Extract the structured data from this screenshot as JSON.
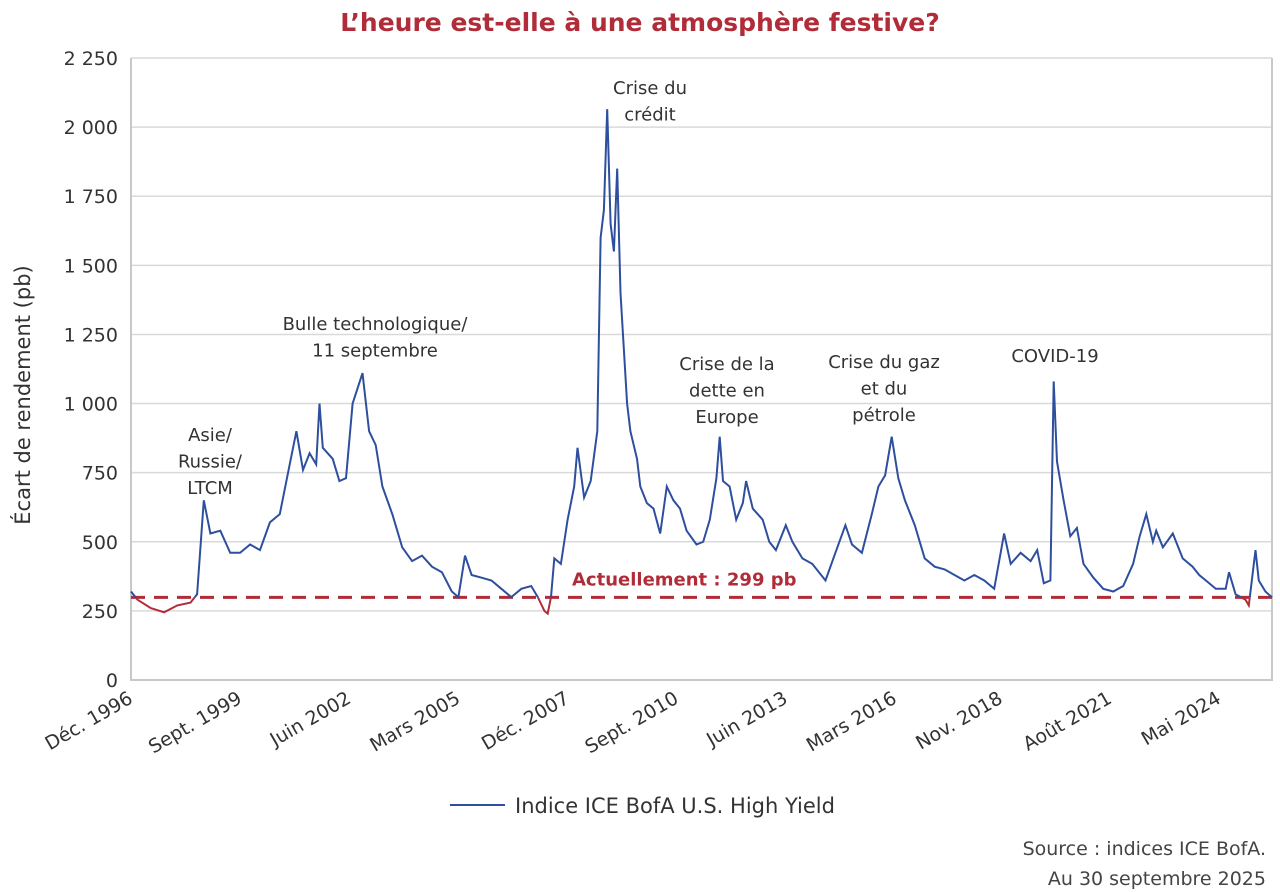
{
  "colors": {
    "series": "#2e4f9e",
    "current": "#b02c38",
    "title": "#b02c38",
    "grid": "#d9d9d9",
    "frame": "#c8c8c8"
  },
  "chart_data": {
    "type": "line",
    "title": "L’heure est-elle à une atmosphère festive?",
    "ylabel": "Écart de rendement (pb)",
    "xlabel": "",
    "ylim": [
      0,
      2250
    ],
    "yticks": [
      0,
      250,
      500,
      750,
      1000,
      1250,
      1500,
      1750,
      2000,
      2250
    ],
    "ytick_labels": [
      "0",
      "250",
      "500",
      "750",
      "1 000",
      "1 250",
      "1 500",
      "1 750",
      "2 000",
      "2 250"
    ],
    "xlim": [
      "1996-12",
      "2025-09"
    ],
    "xticks": [
      "1996-12",
      "1999-09",
      "2002-06",
      "2005-03",
      "2007-12",
      "2010-09",
      "2013-06",
      "2016-03",
      "2018-11",
      "2021-08",
      "2024-05"
    ],
    "xtick_labels": [
      "Déc. 1996",
      "Sept. 1999",
      "Juin 2002",
      "Mars 2005",
      "Déc. 2007",
      "Sept. 2010",
      "Juin 2013",
      "Mars 2016",
      "Nov. 2018",
      "Août 2021",
      "Mai 2024"
    ],
    "grid": true,
    "legend_placement": "bottom",
    "series": [
      {
        "name": "Indice ICE BofA U.S. High Yield",
        "x": [
          "1996-12",
          "1997-02",
          "1997-06",
          "1997-10",
          "1998-02",
          "1998-06",
          "1998-08",
          "1998-10",
          "1998-12",
          "1999-03",
          "1999-06",
          "1999-09",
          "1999-12",
          "2000-03",
          "2000-06",
          "2000-09",
          "2000-12",
          "2001-02",
          "2001-04",
          "2001-06",
          "2001-08",
          "2001-09",
          "2001-10",
          "2002-01",
          "2002-03",
          "2002-05",
          "2002-07",
          "2002-10",
          "2002-12",
          "2003-02",
          "2003-04",
          "2003-07",
          "2003-10",
          "2004-01",
          "2004-04",
          "2004-07",
          "2004-10",
          "2005-01",
          "2005-03",
          "2005-05",
          "2005-07",
          "2005-10",
          "2006-01",
          "2006-04",
          "2006-07",
          "2006-10",
          "2007-01",
          "2007-03",
          "2007-05",
          "2007-06",
          "2007-07",
          "2007-08",
          "2007-10",
          "2007-12",
          "2008-02",
          "2008-03",
          "2008-05",
          "2008-07",
          "2008-09",
          "2008-10",
          "2008-11",
          "2008-12",
          "2009-01",
          "2009-02",
          "2009-03",
          "2009-04",
          "2009-06",
          "2009-07",
          "2009-09",
          "2009-10",
          "2009-12",
          "2010-02",
          "2010-04",
          "2010-06",
          "2010-08",
          "2010-10",
          "2010-12",
          "2011-03",
          "2011-05",
          "2011-07",
          "2011-09",
          "2011-10",
          "2011-11",
          "2012-01",
          "2012-03",
          "2012-05",
          "2012-06",
          "2012-08",
          "2012-11",
          "2013-01",
          "2013-03",
          "2013-06",
          "2013-08",
          "2013-11",
          "2014-02",
          "2014-06",
          "2014-09",
          "2014-12",
          "2015-02",
          "2015-05",
          "2015-08",
          "2015-10",
          "2015-12",
          "2016-02",
          "2016-04",
          "2016-06",
          "2016-09",
          "2016-12",
          "2017-03",
          "2017-06",
          "2017-09",
          "2017-12",
          "2018-03",
          "2018-06",
          "2018-09",
          "2018-12",
          "2019-02",
          "2019-05",
          "2019-08",
          "2019-10",
          "2019-12",
          "2020-02",
          "2020-03",
          "2020-04",
          "2020-06",
          "2020-08",
          "2020-10",
          "2020-12",
          "2021-03",
          "2021-06",
          "2021-09",
          "2021-12",
          "2022-03",
          "2022-05",
          "2022-07",
          "2022-09",
          "2022-10",
          "2022-12",
          "2023-03",
          "2023-06",
          "2023-09",
          "2023-11",
          "2024-01",
          "2024-04",
          "2024-07",
          "2024-08",
          "2024-10",
          "2025-01",
          "2025-02",
          "2025-04",
          "2025-05",
          "2025-07",
          "2025-09"
        ],
        "values": [
          320,
          290,
          260,
          245,
          270,
          280,
          310,
          650,
          530,
          540,
          460,
          460,
          490,
          470,
          570,
          600,
          780,
          900,
          760,
          820,
          780,
          1000,
          840,
          800,
          720,
          730,
          1000,
          1110,
          900,
          850,
          700,
          600,
          480,
          430,
          450,
          410,
          390,
          320,
          300,
          450,
          380,
          370,
          360,
          330,
          300,
          330,
          340,
          300,
          250,
          240,
          300,
          440,
          420,
          580,
          700,
          840,
          660,
          720,
          900,
          1600,
          1700,
          2065,
          1650,
          1550,
          1850,
          1400,
          1000,
          900,
          800,
          700,
          640,
          620,
          530,
          700,
          650,
          620,
          540,
          490,
          500,
          580,
          730,
          880,
          720,
          700,
          580,
          640,
          720,
          620,
          580,
          500,
          470,
          560,
          500,
          440,
          420,
          360,
          460,
          560,
          490,
          460,
          600,
          700,
          740,
          880,
          730,
          650,
          560,
          440,
          410,
          400,
          380,
          360,
          380,
          360,
          330,
          530,
          420,
          460,
          430,
          470,
          350,
          360,
          1080,
          790,
          650,
          520,
          550,
          420,
          370,
          330,
          320,
          340,
          420,
          520,
          600,
          500,
          540,
          480,
          530,
          440,
          410,
          380,
          360,
          330,
          330,
          390,
          310,
          290,
          270,
          470,
          360,
          320,
          299
        ]
      }
    ],
    "reference_line": {
      "value": 299,
      "label": "Actuellement : 299 pb",
      "style": "dashed"
    },
    "annotations": [
      {
        "lines": [
          "Asie/",
          "Russie/",
          "LTCM"
        ]
      },
      {
        "lines": [
          "Bulle technologique/",
          "11 septembre"
        ]
      },
      {
        "lines": [
          "Crise du",
          "crédit"
        ]
      },
      {
        "lines": [
          "Crise de la",
          "dette en",
          "Europe"
        ]
      },
      {
        "lines": [
          "Crise du gaz",
          "et du",
          "pétrole"
        ]
      },
      {
        "lines": [
          "COVID-19"
        ]
      }
    ]
  },
  "legend": {
    "label": "Indice ICE BofA U.S. High Yield"
  },
  "source": {
    "line1": "Source : indices ICE BofA.",
    "line2": "Au 30 septembre 2025"
  }
}
